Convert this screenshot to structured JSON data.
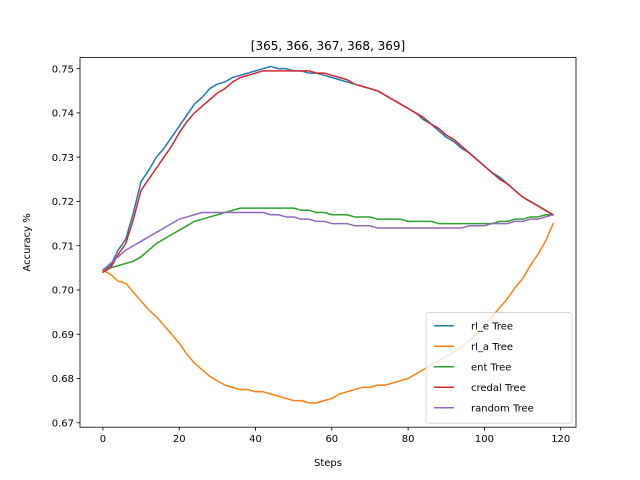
{
  "chart_data": {
    "type": "line",
    "title": "[365, 366, 367, 368, 369]",
    "xlabel": "Steps",
    "ylabel": "Accuracy %",
    "xlim": [
      -6,
      124
    ],
    "ylim": [
      0.669,
      0.7525
    ],
    "xticks": [
      0,
      20,
      40,
      60,
      80,
      100,
      120
    ],
    "yticks": [
      0.67,
      0.68,
      0.69,
      0.7,
      0.71,
      0.72,
      0.73,
      0.74,
      0.75
    ],
    "ytick_labels": [
      "0.67",
      "0.68",
      "0.69",
      "0.70",
      "0.71",
      "0.72",
      "0.73",
      "0.74",
      "0.75"
    ],
    "grid": false,
    "legend_position": "lower-right",
    "x": [
      0,
      2,
      4,
      6,
      8,
      10,
      12,
      14,
      16,
      18,
      20,
      22,
      24,
      26,
      28,
      30,
      32,
      34,
      36,
      38,
      40,
      42,
      44,
      46,
      48,
      50,
      52,
      54,
      56,
      58,
      60,
      62,
      64,
      66,
      68,
      70,
      72,
      74,
      76,
      78,
      80,
      82,
      84,
      86,
      88,
      90,
      92,
      94,
      96,
      98,
      100,
      102,
      104,
      106,
      108,
      110,
      112,
      114,
      116,
      118
    ],
    "series": [
      {
        "name": "rl_e Tree",
        "color": "#1f77b4",
        "values": [
          0.7045,
          0.7055,
          0.709,
          0.7115,
          0.7175,
          0.7245,
          0.727,
          0.73,
          0.732,
          0.7345,
          0.737,
          0.7395,
          0.742,
          0.7435,
          0.7455,
          0.7465,
          0.747,
          0.748,
          0.7485,
          0.749,
          0.7495,
          0.75,
          0.7505,
          0.75,
          0.75,
          0.7495,
          0.7495,
          0.749,
          0.749,
          0.7485,
          0.748,
          0.7475,
          0.747,
          0.7465,
          0.746,
          0.7455,
          0.745,
          0.744,
          0.743,
          0.742,
          0.741,
          0.74,
          0.7385,
          0.7375,
          0.736,
          0.7345,
          0.7335,
          0.732,
          0.731,
          0.7295,
          0.728,
          0.7265,
          0.7255,
          0.724,
          0.7225,
          0.721,
          0.72,
          0.719,
          0.718,
          0.717
        ]
      },
      {
        "name": "rl_a Tree",
        "color": "#ff7f0e",
        "values": [
          0.7045,
          0.7035,
          0.702,
          0.7015,
          0.6995,
          0.6975,
          0.6955,
          0.694,
          0.692,
          0.69,
          0.688,
          0.6855,
          0.6835,
          0.682,
          0.6805,
          0.6795,
          0.6785,
          0.678,
          0.6775,
          0.6775,
          0.677,
          0.677,
          0.6765,
          0.676,
          0.6755,
          0.675,
          0.675,
          0.6745,
          0.6745,
          0.675,
          0.6755,
          0.6765,
          0.677,
          0.6775,
          0.678,
          0.678,
          0.6785,
          0.6785,
          0.679,
          0.6795,
          0.68,
          0.681,
          0.682,
          0.683,
          0.684,
          0.685,
          0.686,
          0.687,
          0.6885,
          0.69,
          0.692,
          0.694,
          0.696,
          0.698,
          0.7005,
          0.7025,
          0.7055,
          0.708,
          0.711,
          0.715
        ]
      },
      {
        "name": "ent Tree",
        "color": "#2ca02c",
        "values": [
          0.7045,
          0.705,
          0.7055,
          0.706,
          0.7065,
          0.7075,
          0.709,
          0.7105,
          0.7115,
          0.7125,
          0.7135,
          0.7145,
          0.7155,
          0.716,
          0.7165,
          0.717,
          0.7175,
          0.718,
          0.7185,
          0.7185,
          0.7185,
          0.7185,
          0.7185,
          0.7185,
          0.7185,
          0.7185,
          0.718,
          0.718,
          0.7175,
          0.7175,
          0.717,
          0.717,
          0.717,
          0.7165,
          0.7165,
          0.7165,
          0.716,
          0.716,
          0.716,
          0.716,
          0.7155,
          0.7155,
          0.7155,
          0.7155,
          0.715,
          0.715,
          0.715,
          0.715,
          0.715,
          0.715,
          0.715,
          0.715,
          0.7155,
          0.7155,
          0.716,
          0.716,
          0.7165,
          0.7165,
          0.717,
          0.717
        ]
      },
      {
        "name": "credal Tree",
        "color": "#d62728",
        "values": [
          0.704,
          0.705,
          0.708,
          0.7105,
          0.716,
          0.7225,
          0.725,
          0.7275,
          0.73,
          0.7325,
          0.7355,
          0.738,
          0.74,
          0.7415,
          0.743,
          0.7445,
          0.7455,
          0.747,
          0.748,
          0.7485,
          0.749,
          0.7495,
          0.7495,
          0.7495,
          0.7495,
          0.7495,
          0.7495,
          0.7495,
          0.749,
          0.749,
          0.7485,
          0.748,
          0.7475,
          0.7465,
          0.746,
          0.7455,
          0.745,
          0.744,
          0.743,
          0.742,
          0.741,
          0.74,
          0.739,
          0.7375,
          0.7365,
          0.735,
          0.734,
          0.7325,
          0.731,
          0.7295,
          0.728,
          0.7265,
          0.725,
          0.724,
          0.7225,
          0.721,
          0.72,
          0.719,
          0.718,
          0.717
        ]
      },
      {
        "name": "random Tree",
        "color": "#9467bd",
        "values": [
          0.7045,
          0.706,
          0.7075,
          0.709,
          0.71,
          0.711,
          0.712,
          0.713,
          0.714,
          0.715,
          0.716,
          0.7165,
          0.717,
          0.7175,
          0.7175,
          0.7175,
          0.7175,
          0.7175,
          0.7175,
          0.7175,
          0.7175,
          0.7175,
          0.717,
          0.717,
          0.7165,
          0.7165,
          0.716,
          0.716,
          0.7155,
          0.7155,
          0.715,
          0.715,
          0.715,
          0.7145,
          0.7145,
          0.7145,
          0.714,
          0.714,
          0.714,
          0.714,
          0.714,
          0.714,
          0.714,
          0.714,
          0.714,
          0.714,
          0.714,
          0.714,
          0.7145,
          0.7145,
          0.7145,
          0.715,
          0.715,
          0.715,
          0.7155,
          0.7155,
          0.716,
          0.716,
          0.7165,
          0.717
        ]
      }
    ]
  }
}
